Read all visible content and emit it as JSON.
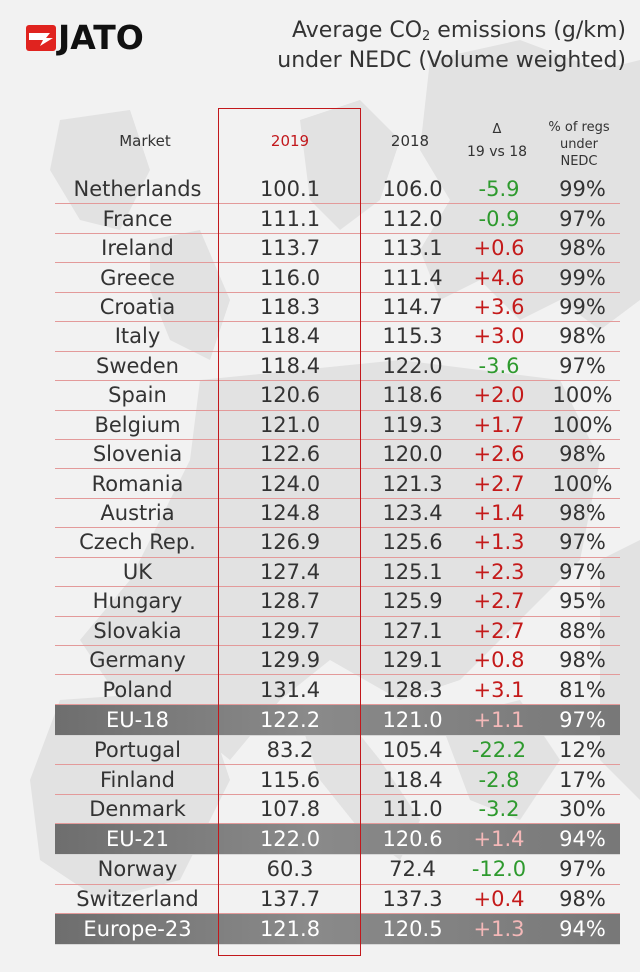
{
  "header": {
    "logo_text": "JATO",
    "title_line1_pre": "Average CO",
    "title_line1_sub": "2",
    "title_line1_post": " emissions (g/km)",
    "title_line2": "under NEDC (Volume weighted)"
  },
  "colors": {
    "accent_red": "#c2181c",
    "logo_red": "#e0231f",
    "decrease_green": "#2e9a2e",
    "increase_red": "#c41a1a",
    "aggregate_row_gray": "#7a7a7a"
  },
  "chart_data": {
    "type": "table",
    "columns": [
      "Market",
      "2019",
      "2018",
      "Δ",
      "19 vs 18",
      "% of regs",
      "under",
      "NEDC"
    ],
    "column_headers": {
      "market": "Market",
      "y2019": "2019",
      "y2018": "2018",
      "delta_symbol": "Δ",
      "delta_label": "19 vs 18",
      "share_line1": "% of regs",
      "share_line2": "under",
      "share_line3": "NEDC"
    },
    "highlighted_column": "2019",
    "rows": [
      {
        "market": "Netherlands",
        "y2019": "100.1",
        "y2018": "106.0",
        "delta": "-5.9",
        "share": "99%",
        "aggregate": false
      },
      {
        "market": "France",
        "y2019": "111.1",
        "y2018": "112.0",
        "delta": "-0.9",
        "share": "97%",
        "aggregate": false
      },
      {
        "market": "Ireland",
        "y2019": "113.7",
        "y2018": "113.1",
        "delta": "+0.6",
        "share": "98%",
        "aggregate": false
      },
      {
        "market": "Greece",
        "y2019": "116.0",
        "y2018": "111.4",
        "delta": "+4.6",
        "share": "99%",
        "aggregate": false
      },
      {
        "market": "Croatia",
        "y2019": "118.3",
        "y2018": "114.7",
        "delta": "+3.6",
        "share": "99%",
        "aggregate": false
      },
      {
        "market": "Italy",
        "y2019": "118.4",
        "y2018": "115.3",
        "delta": "+3.0",
        "share": "98%",
        "aggregate": false
      },
      {
        "market": "Sweden",
        "y2019": "118.4",
        "y2018": "122.0",
        "delta": "-3.6",
        "share": "97%",
        "aggregate": false
      },
      {
        "market": "Spain",
        "y2019": "120.6",
        "y2018": "118.6",
        "delta": "+2.0",
        "share": "100%",
        "aggregate": false
      },
      {
        "market": "Belgium",
        "y2019": "121.0",
        "y2018": "119.3",
        "delta": "+1.7",
        "share": "100%",
        "aggregate": false
      },
      {
        "market": "Slovenia",
        "y2019": "122.6",
        "y2018": "120.0",
        "delta": "+2.6",
        "share": "98%",
        "aggregate": false
      },
      {
        "market": "Romania",
        "y2019": "124.0",
        "y2018": "121.3",
        "delta": "+2.7",
        "share": "100%",
        "aggregate": false
      },
      {
        "market": "Austria",
        "y2019": "124.8",
        "y2018": "123.4",
        "delta": "+1.4",
        "share": "98%",
        "aggregate": false
      },
      {
        "market": "Czech Rep.",
        "y2019": "126.9",
        "y2018": "125.6",
        "delta": "+1.3",
        "share": "97%",
        "aggregate": false
      },
      {
        "market": "UK",
        "y2019": "127.4",
        "y2018": "125.1",
        "delta": "+2.3",
        "share": "97%",
        "aggregate": false
      },
      {
        "market": "Hungary",
        "y2019": "128.7",
        "y2018": "125.9",
        "delta": "+2.7",
        "share": "95%",
        "aggregate": false
      },
      {
        "market": "Slovakia",
        "y2019": "129.7",
        "y2018": "127.1",
        "delta": "+2.7",
        "share": "88%",
        "aggregate": false
      },
      {
        "market": "Germany",
        "y2019": "129.9",
        "y2018": "129.1",
        "delta": "+0.8",
        "share": "98%",
        "aggregate": false
      },
      {
        "market": "Poland",
        "y2019": "131.4",
        "y2018": "128.3",
        "delta": "+3.1",
        "share": "81%",
        "aggregate": false
      },
      {
        "market": "EU-18",
        "y2019": "122.2",
        "y2018": "121.0",
        "delta": "+1.1",
        "share": "97%",
        "aggregate": true
      },
      {
        "market": "Portugal",
        "y2019": "83.2",
        "y2018": "105.4",
        "delta": "-22.2",
        "share": "12%",
        "aggregate": false
      },
      {
        "market": "Finland",
        "y2019": "115.6",
        "y2018": "118.4",
        "delta": "-2.8",
        "share": "17%",
        "aggregate": false
      },
      {
        "market": "Denmark",
        "y2019": "107.8",
        "y2018": "111.0",
        "delta": "-3.2",
        "share": "30%",
        "aggregate": false
      },
      {
        "market": "EU-21",
        "y2019": "122.0",
        "y2018": "120.6",
        "delta": "+1.4",
        "share": "94%",
        "aggregate": true
      },
      {
        "market": "Norway",
        "y2019": "60.3",
        "y2018": "72.4",
        "delta": "-12.0",
        "share": "97%",
        "aggregate": false
      },
      {
        "market": "Switzerland",
        "y2019": "137.7",
        "y2018": "137.3",
        "delta": "+0.4",
        "share": "98%",
        "aggregate": false
      },
      {
        "market": "Europe-23",
        "y2019": "121.8",
        "y2018": "120.5",
        "delta": "+1.3",
        "share": "94%",
        "aggregate": true
      }
    ]
  }
}
